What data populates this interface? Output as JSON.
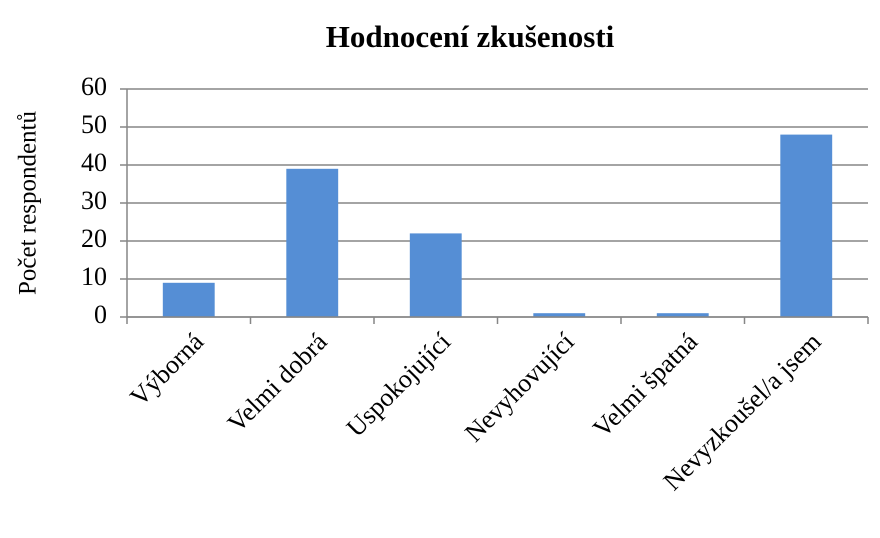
{
  "chart_data": {
    "type": "bar",
    "title": "Hodnocení zkušenosti",
    "y_label": "Počet respondentů",
    "categories": [
      "Výborná",
      "Velmi dobrá",
      "Uspokojující",
      "Nevyhovující",
      "Velmi špatná",
      "Nevyzkoušel/a jsem"
    ],
    "values": [
      9,
      39,
      22,
      1,
      1,
      48
    ],
    "color": "#558ed5",
    "ylim": [
      0,
      60
    ],
    "yticks": [
      0,
      10,
      20,
      30,
      40,
      50,
      60
    ],
    "grid": true
  }
}
